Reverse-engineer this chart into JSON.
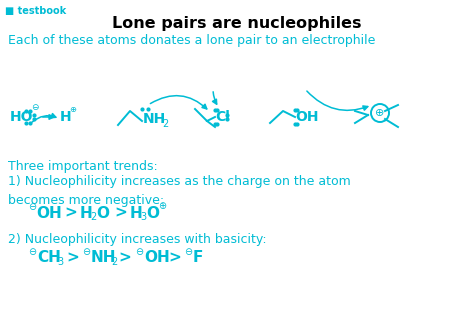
{
  "bg_color": "#ffffff",
  "title": "Lone pairs are nucleophiles",
  "title_color": "#000000",
  "title_fontsize": 11.5,
  "subtitle": "Each of these atoms donates a lone pair to an electrophile",
  "subtitle_color": "#00bcd4",
  "subtitle_fontsize": 9,
  "teal": "#00bcd4",
  "black": "#000000",
  "trend_text_1": "Three important trends:",
  "trend_text_2": "1) Nucleophilicity increases as the charge on the atom\nbecomes more negative:",
  "trend_text_3": "2) Nucleophilicity increases with basicity:",
  "figsize": [
    4.74,
    3.32
  ],
  "dpi": 100
}
